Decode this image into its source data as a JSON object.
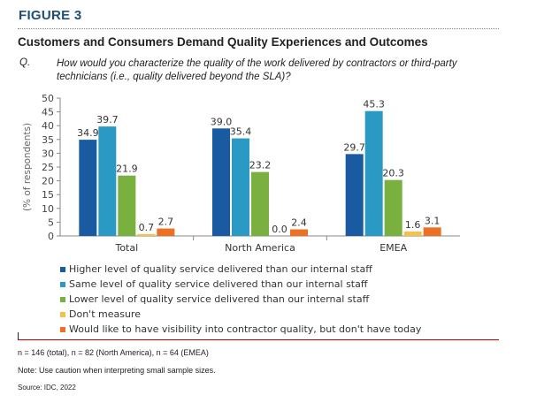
{
  "figure_label": "FIGURE 3",
  "title": "Customers and Consumers Demand Quality Experiences and Outcomes",
  "question_label": "Q.",
  "question_text": "How would you characterize the quality of the work delivered by contractors or third-party technicians (i.e., quality delivered beyond the SLA)?",
  "chart_data": {
    "type": "bar",
    "ylabel": "(% of respondents)",
    "xlabel": "",
    "ylim": [
      0,
      50
    ],
    "yticks": [
      0,
      5,
      10,
      15,
      20,
      25,
      30,
      35,
      40,
      45,
      50
    ],
    "grid": false,
    "legend_placement": "bottom",
    "categories": [
      "Total",
      "North America",
      "EMEA"
    ],
    "series": [
      {
        "name": "Higher level of quality service delivered than our internal staff",
        "color": "#1a5aa0",
        "values": [
          34.9,
          39.0,
          29.7
        ]
      },
      {
        "name": "Same level of quality service delivered than our internal staff",
        "color": "#2a9ac4",
        "values": [
          39.7,
          35.4,
          45.3
        ]
      },
      {
        "name": "Lower level of quality service delivered than our internal staff",
        "color": "#7ab03f",
        "values": [
          21.9,
          23.2,
          20.3
        ]
      },
      {
        "name": "Don't measure",
        "color": "#f2c34a",
        "values": [
          0.7,
          0.0,
          1.6
        ]
      },
      {
        "name": "Would like to have visibility into contractor quality, but don't have today",
        "color": "#ee7022",
        "values": [
          2.7,
          2.4,
          3.1
        ]
      }
    ]
  },
  "notes": {
    "sample": "n = 146 (total), n = 82 (North America), n = 64 (EMEA)",
    "caution": "Note: Use caution when interpreting small sample sizes.",
    "source": "Source: IDC, 2022"
  }
}
